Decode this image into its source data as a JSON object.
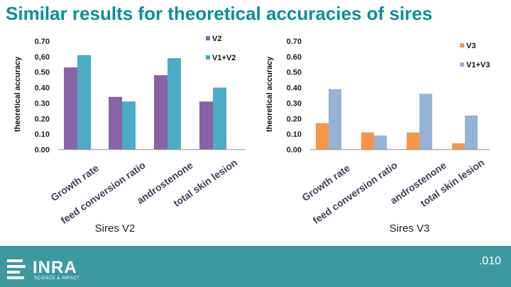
{
  "slide": {
    "title": "Similar results for theoretical accuracies of sires",
    "page_number": ".010",
    "logo_text": "INRA",
    "logo_tagline": "SCIENCE & IMPACT"
  },
  "colors": {
    "title": "#0a8f98",
    "v2": "#8a62a6",
    "v1_v2": "#4bacc6",
    "v3": "#f79646",
    "v1_v3": "#95b3d7",
    "footer": "#3c9a9f"
  },
  "chart_data": [
    {
      "type": "bar",
      "subtitle": "Sires V2",
      "ylabel": "theoretical accuracy",
      "ylim": [
        0,
        0.7
      ],
      "yticks": [
        "0.00",
        "0.10",
        "0.20",
        "0.30",
        "0.40",
        "0.50",
        "0,60",
        "0.70"
      ],
      "categories": [
        "Growth rate",
        "feed conversion ratio",
        "androstenone",
        "total skin lesion"
      ],
      "series": [
        {
          "name": "V2",
          "values": [
            0.53,
            0.34,
            0.48,
            0.31
          ]
        },
        {
          "name": "V1+V2",
          "values": [
            0.61,
            0.31,
            0.59,
            0.4
          ]
        }
      ],
      "legend_position": "top-right",
      "grid": false
    },
    {
      "type": "bar",
      "subtitle": "Sires V3",
      "ylabel": "theoretical accuracy",
      "ylim": [
        0,
        0.7
      ],
      "yticks": [
        "0.00",
        "0.10",
        "0.20",
        "0.30",
        "0.40",
        "0.50",
        "0.60",
        "0.70"
      ],
      "categories": [
        "Growth rate",
        "feed conversion ratio",
        "androstenone",
        "total skin lesion"
      ],
      "series": [
        {
          "name": "V3",
          "values": [
            0.17,
            0.11,
            0.11,
            0.04
          ]
        },
        {
          "name": "V1+V3",
          "values": [
            0.39,
            0.09,
            0.36,
            0.22
          ]
        }
      ],
      "legend_position": "top-right",
      "grid": false
    }
  ]
}
